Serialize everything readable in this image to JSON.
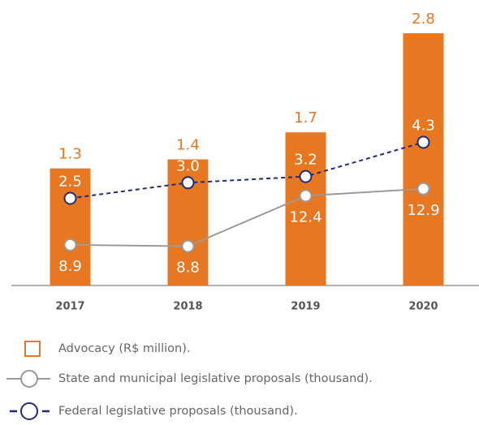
{
  "chart_data": {
    "type": "bar",
    "categories": [
      "2017",
      "2018",
      "2019",
      "2020"
    ],
    "series": [
      {
        "name": "Advocacy (R$ million).",
        "type": "bar",
        "axis": "y",
        "color": "#e87722",
        "values": [
          1.3,
          1.4,
          1.7,
          2.8
        ],
        "value_labels": [
          "1.3",
          "1.4",
          "1.7",
          "2.8"
        ]
      },
      {
        "name": "State and municipal legislative proposals (thousand).",
        "type": "line",
        "axis": "y2",
        "color": "#9a9a9a",
        "dashed": false,
        "values": [
          8.9,
          8.8,
          12.4,
          12.9
        ],
        "value_labels": [
          "8.9",
          "8.8",
          "12.4",
          "12.9"
        ]
      },
      {
        "name": "Federal legislative proposals (thousand).",
        "type": "line",
        "axis": "y3",
        "color": "#1f2d7a",
        "dashed": true,
        "values": [
          2.5,
          3.0,
          3.2,
          4.3
        ],
        "value_labels": [
          "2.5",
          "3.0",
          "3.2",
          "4.3"
        ]
      }
    ],
    "ylim": [
      0,
      2.8
    ],
    "y2lim": [
      6,
      24
    ],
    "y3lim": [
      -0.3,
      7.8
    ]
  }
}
